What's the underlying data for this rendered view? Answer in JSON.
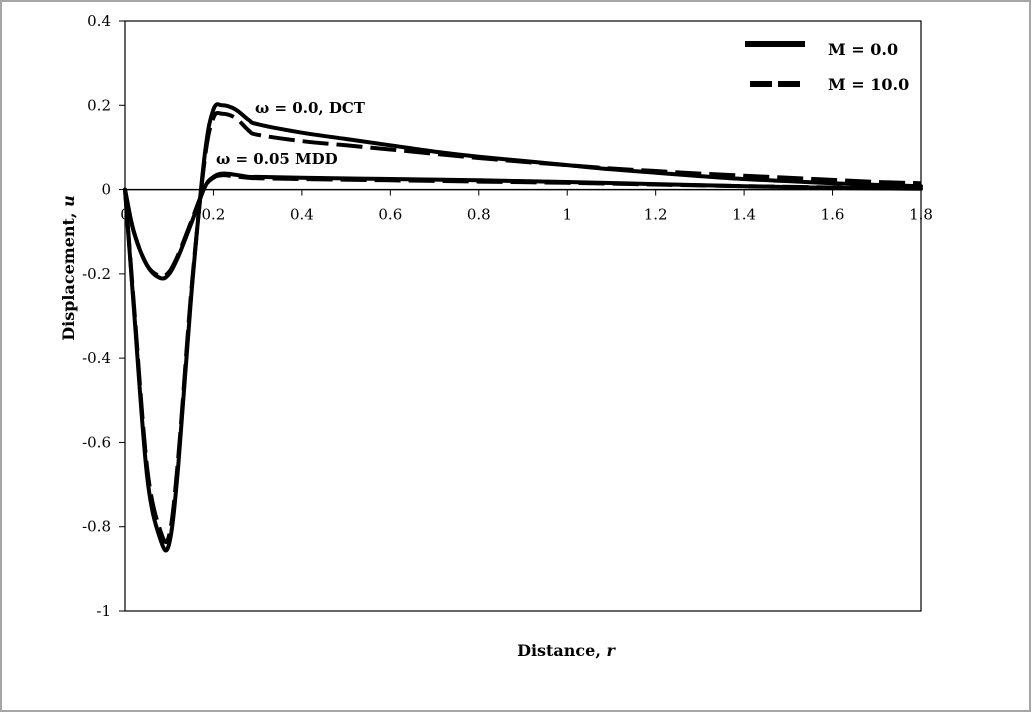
{
  "chart_data": {
    "type": "line",
    "xlabel": "Distance, ",
    "xlabel_var": "r",
    "ylabel": "Displacement, ",
    "ylabel_var": "u",
    "xlim": [
      0,
      1.8
    ],
    "ylim": [
      -1,
      0.4
    ],
    "xticks": [
      0,
      0.2,
      0.4,
      0.6,
      0.8,
      1,
      1.2,
      1.4,
      1.6,
      1.8
    ],
    "xtick_labels": [
      "0",
      "0.2",
      "0.4",
      "0.6",
      "0.8",
      "1",
      "1.2",
      "1.4",
      "1.6",
      "1.8"
    ],
    "yticks": [
      -1,
      -0.8,
      -0.6,
      -0.4,
      -0.2,
      0,
      0.2,
      0.4
    ],
    "ytick_labels": [
      "-1",
      "-0.8",
      "-0.6",
      "-0.4",
      "-0.2",
      "0",
      "0.2",
      "0.4"
    ],
    "grid": false,
    "legend_position": "top-right",
    "legend": [
      {
        "label": "M = 0.0",
        "style": "solid"
      },
      {
        "label": "M = 10.0",
        "style": "dashed"
      }
    ],
    "annotations": [
      {
        "text": "ω = 0.0,  DCT",
        "x": 0.3,
        "y": 0.19
      },
      {
        "text": "ω = 0.05  MDD",
        "x": 0.21,
        "y": 0.065
      }
    ],
    "series": [
      {
        "group": "ω = 0.0,  DCT",
        "style": "solid",
        "x": [
          0,
          0.02,
          0.05,
          0.08,
          0.1,
          0.12,
          0.15,
          0.18,
          0.2,
          0.22,
          0.25,
          0.28,
          0.3,
          0.4,
          0.5,
          0.6,
          0.7,
          0.8,
          0.9,
          1.0,
          1.1,
          1.2,
          1.3,
          1.4,
          1.5,
          1.6,
          1.7,
          1.8
        ],
        "y": [
          0,
          -0.28,
          -0.68,
          -0.83,
          -0.84,
          -0.66,
          -0.25,
          0.08,
          0.19,
          0.2,
          0.19,
          0.165,
          0.155,
          0.135,
          0.12,
          0.105,
          0.09,
          0.078,
          0.068,
          0.058,
          0.048,
          0.04,
          0.032,
          0.025,
          0.02,
          0.015,
          0.011,
          0.008
        ]
      },
      {
        "group": "ω = 0.0,  DCT",
        "style": "dashed",
        "x": [
          0,
          0.02,
          0.05,
          0.08,
          0.1,
          0.12,
          0.15,
          0.18,
          0.2,
          0.22,
          0.25,
          0.28,
          0.3,
          0.4,
          0.5,
          0.6,
          0.7,
          0.8,
          0.9,
          1.0,
          1.1,
          1.2,
          1.3,
          1.4,
          1.5,
          1.6,
          1.7,
          1.8
        ],
        "y": [
          0,
          -0.27,
          -0.66,
          -0.81,
          -0.82,
          -0.64,
          -0.24,
          0.07,
          0.17,
          0.18,
          0.17,
          0.14,
          0.13,
          0.115,
          0.105,
          0.095,
          0.085,
          0.075,
          0.066,
          0.058,
          0.05,
          0.044,
          0.038,
          0.033,
          0.028,
          0.023,
          0.018,
          0.015
        ]
      },
      {
        "group": "ω = 0.05  MDD",
        "style": "solid",
        "x": [
          0,
          0.02,
          0.05,
          0.08,
          0.1,
          0.12,
          0.15,
          0.18,
          0.2,
          0.22,
          0.25,
          0.28,
          0.3,
          0.4,
          0.6,
          0.8,
          1.0,
          1.2,
          1.4,
          1.6,
          1.8
        ],
        "y": [
          0,
          -0.1,
          -0.18,
          -0.21,
          -0.2,
          -0.16,
          -0.08,
          0.005,
          0.03,
          0.038,
          0.035,
          0.03,
          0.03,
          0.028,
          0.025,
          0.022,
          0.018,
          0.013,
          0.008,
          0.004,
          0.002
        ]
      },
      {
        "group": "ω = 0.05  MDD",
        "style": "dashed",
        "x": [
          0,
          0.02,
          0.05,
          0.08,
          0.1,
          0.12,
          0.15,
          0.18,
          0.2,
          0.22,
          0.25,
          0.28,
          0.3,
          0.4,
          0.6,
          0.8,
          1.0,
          1.2,
          1.4,
          1.6,
          1.8
        ],
        "y": [
          0,
          -0.1,
          -0.18,
          -0.205,
          -0.195,
          -0.155,
          -0.075,
          0.005,
          0.028,
          0.034,
          0.031,
          0.028,
          0.027,
          0.025,
          0.022,
          0.019,
          0.016,
          0.012,
          0.008,
          0.005,
          0.003
        ]
      }
    ]
  }
}
